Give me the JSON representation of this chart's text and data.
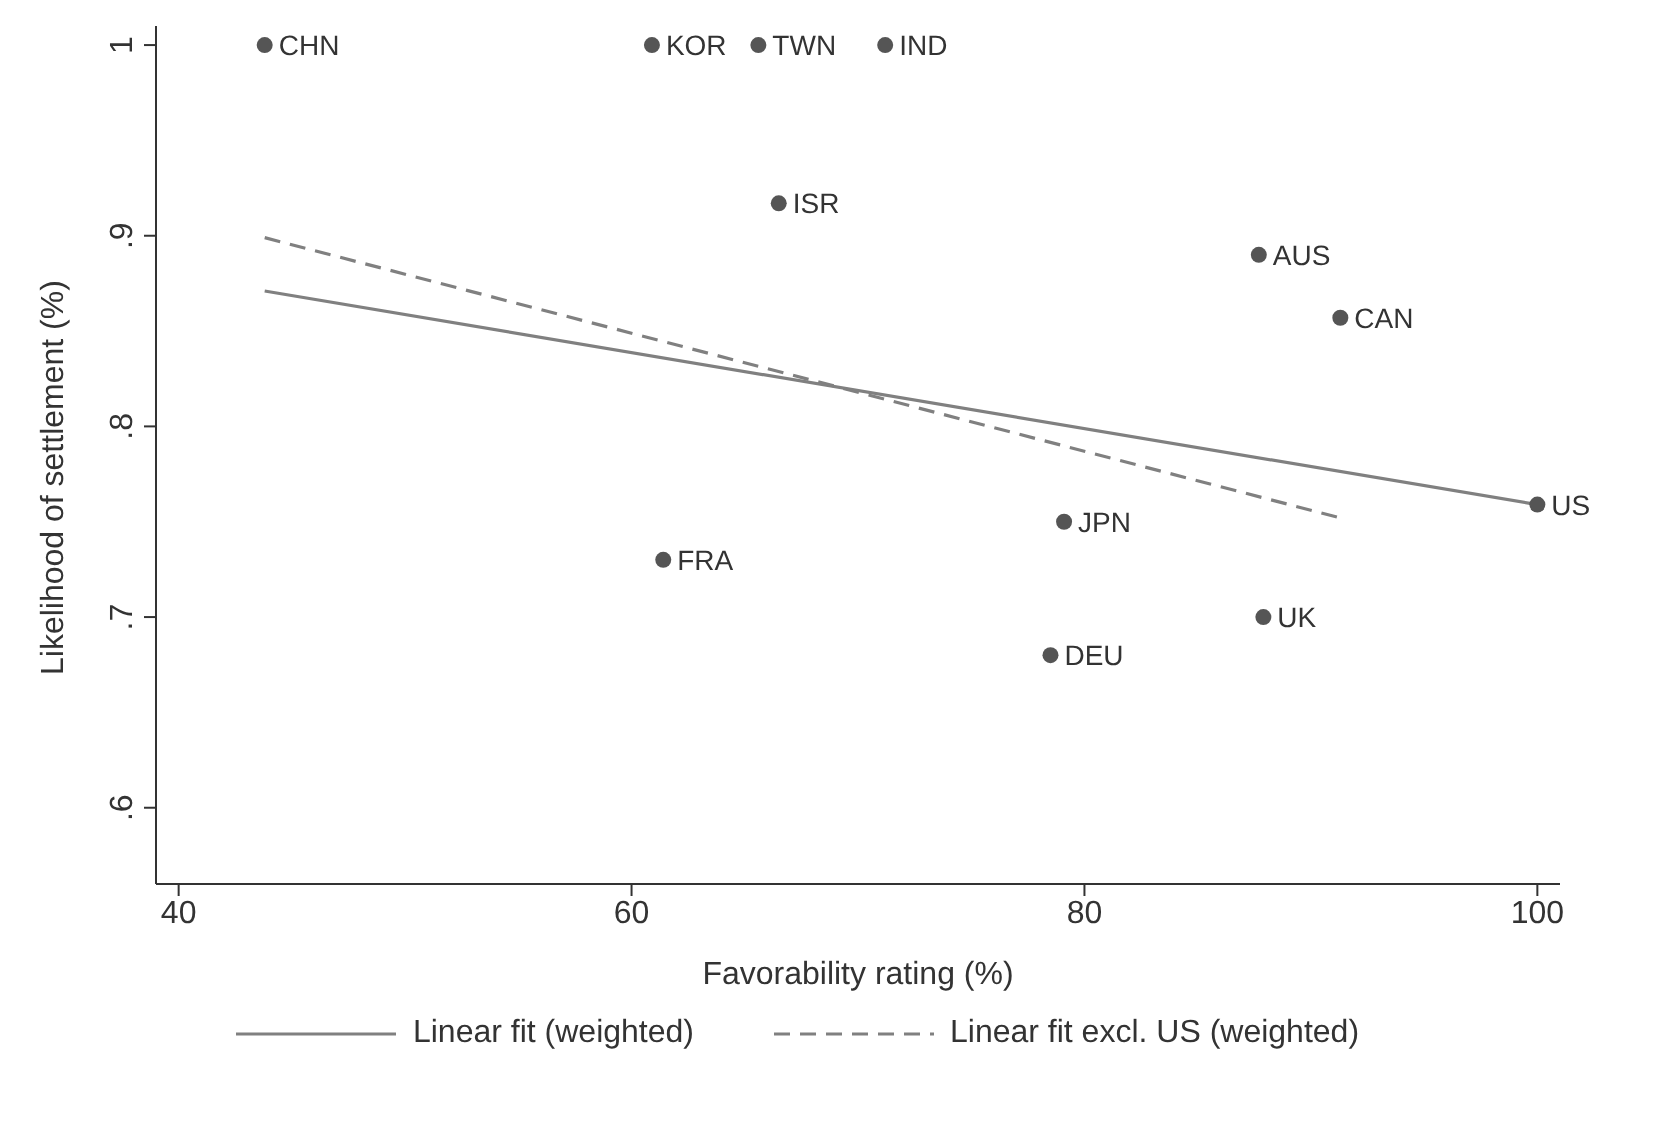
{
  "chart_data": {
    "type": "scatter",
    "xlabel": "Favorability rating (%)",
    "ylabel": "Likelihood of settlement (%)",
    "xlim": [
      39,
      101
    ],
    "ylim": [
      0.56,
      1.01
    ],
    "xticks": [
      40,
      60,
      80,
      100
    ],
    "yticks": [
      {
        "value": 0.6,
        "label": ".6"
      },
      {
        "value": 0.7,
        "label": ".7"
      },
      {
        "value": 0.8,
        "label": ".8"
      },
      {
        "value": 0.9,
        "label": ".9"
      },
      {
        "value": 1,
        "label": "1"
      }
    ],
    "grid": false,
    "legend": "bottom",
    "series": [
      {
        "marker": "circle",
        "color": "#555555",
        "x": [
          43.8,
          60.9,
          65.6,
          71.2,
          66.5,
          87.7,
          91.3,
          100,
          79.1,
          61.4,
          87.9,
          78.5
        ],
        "values": [
          1.0,
          1.0,
          1.0,
          1.0,
          0.917,
          0.89,
          0.857,
          0.759,
          0.75,
          0.73,
          0.7,
          0.68
        ]
      },
      {
        "type": "line",
        "name": "Linear fit (weighted)",
        "color": "#808080",
        "line_style": "solid",
        "x": [
          43.8,
          100
        ],
        "values": [
          0.871,
          0.759
        ]
      },
      {
        "type": "line",
        "name": "Linear fit excl. US (weighted)",
        "color": "#808080",
        "line_style": "dashed",
        "x": [
          43.8,
          91.3
        ],
        "values": [
          0.899,
          0.752
        ]
      }
    ],
    "annotations": [
      {
        "text": "CHN",
        "x": 43.8,
        "y": 1.0
      },
      {
        "text": "KOR",
        "x": 60.9,
        "y": 1.0
      },
      {
        "text": "TWN",
        "x": 65.6,
        "y": 1.0
      },
      {
        "text": "IND",
        "x": 71.2,
        "y": 1.0
      },
      {
        "text": "ISR",
        "x": 66.5,
        "y": 0.917
      },
      {
        "text": "AUS",
        "x": 87.7,
        "y": 0.89
      },
      {
        "text": "CAN",
        "x": 91.3,
        "y": 0.857
      },
      {
        "text": "US",
        "x": 100,
        "y": 0.759
      },
      {
        "text": "JPN",
        "x": 79.1,
        "y": 0.75
      },
      {
        "text": "FRA",
        "x": 61.4,
        "y": 0.73
      },
      {
        "text": "UK",
        "x": 87.9,
        "y": 0.7
      },
      {
        "text": "DEU",
        "x": 78.5,
        "y": 0.68
      }
    ]
  }
}
